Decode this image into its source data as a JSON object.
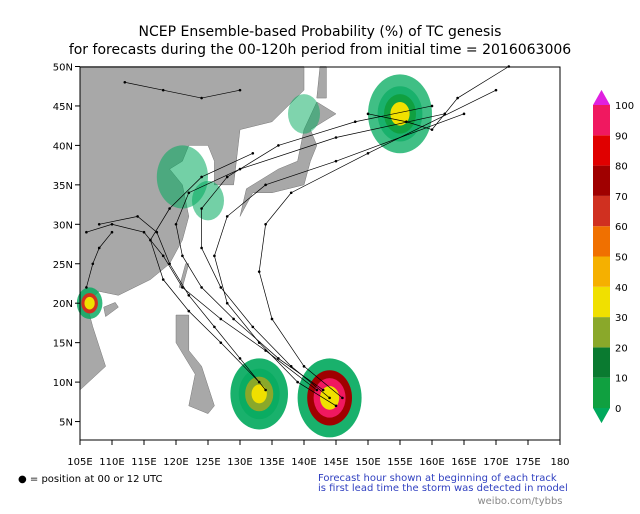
{
  "header": {
    "title": "NCEP Ensemble-based Probability (%) of TC genesis",
    "subtitle": "for forecasts during the 00-120h period from initial time = 2016063006"
  },
  "map": {
    "lon_labels": [
      "105E",
      "110E",
      "115E",
      "120E",
      "125E",
      "130E",
      "135E",
      "140E",
      "145E",
      "150E",
      "155E",
      "160E",
      "165E",
      "170E",
      "175E",
      "180"
    ],
    "lat_labels": [
      "5N",
      "10N",
      "15N",
      "20N",
      "25N",
      "30N",
      "35N",
      "40N",
      "45N",
      "50N"
    ]
  },
  "colorbar": {
    "labels": [
      "0",
      "10",
      "20",
      "30",
      "40",
      "50",
      "60",
      "70",
      "80",
      "90",
      "100"
    ],
    "colors": [
      "#00a95c",
      "#10a040",
      "#0a7a30",
      "#8aa82a",
      "#f0e000",
      "#f5b000",
      "#f07000",
      "#d03020",
      "#a00000",
      "#e00000",
      "#f01860",
      "#e020e0"
    ]
  },
  "footer": {
    "legend": "● = position at 00 or 12 UTC",
    "note_line1": "Forecast hour shown at beginning of each track",
    "note_line2": "is first lead time the storm was detected in model",
    "watermark": "weibo.com/tybbs"
  }
}
